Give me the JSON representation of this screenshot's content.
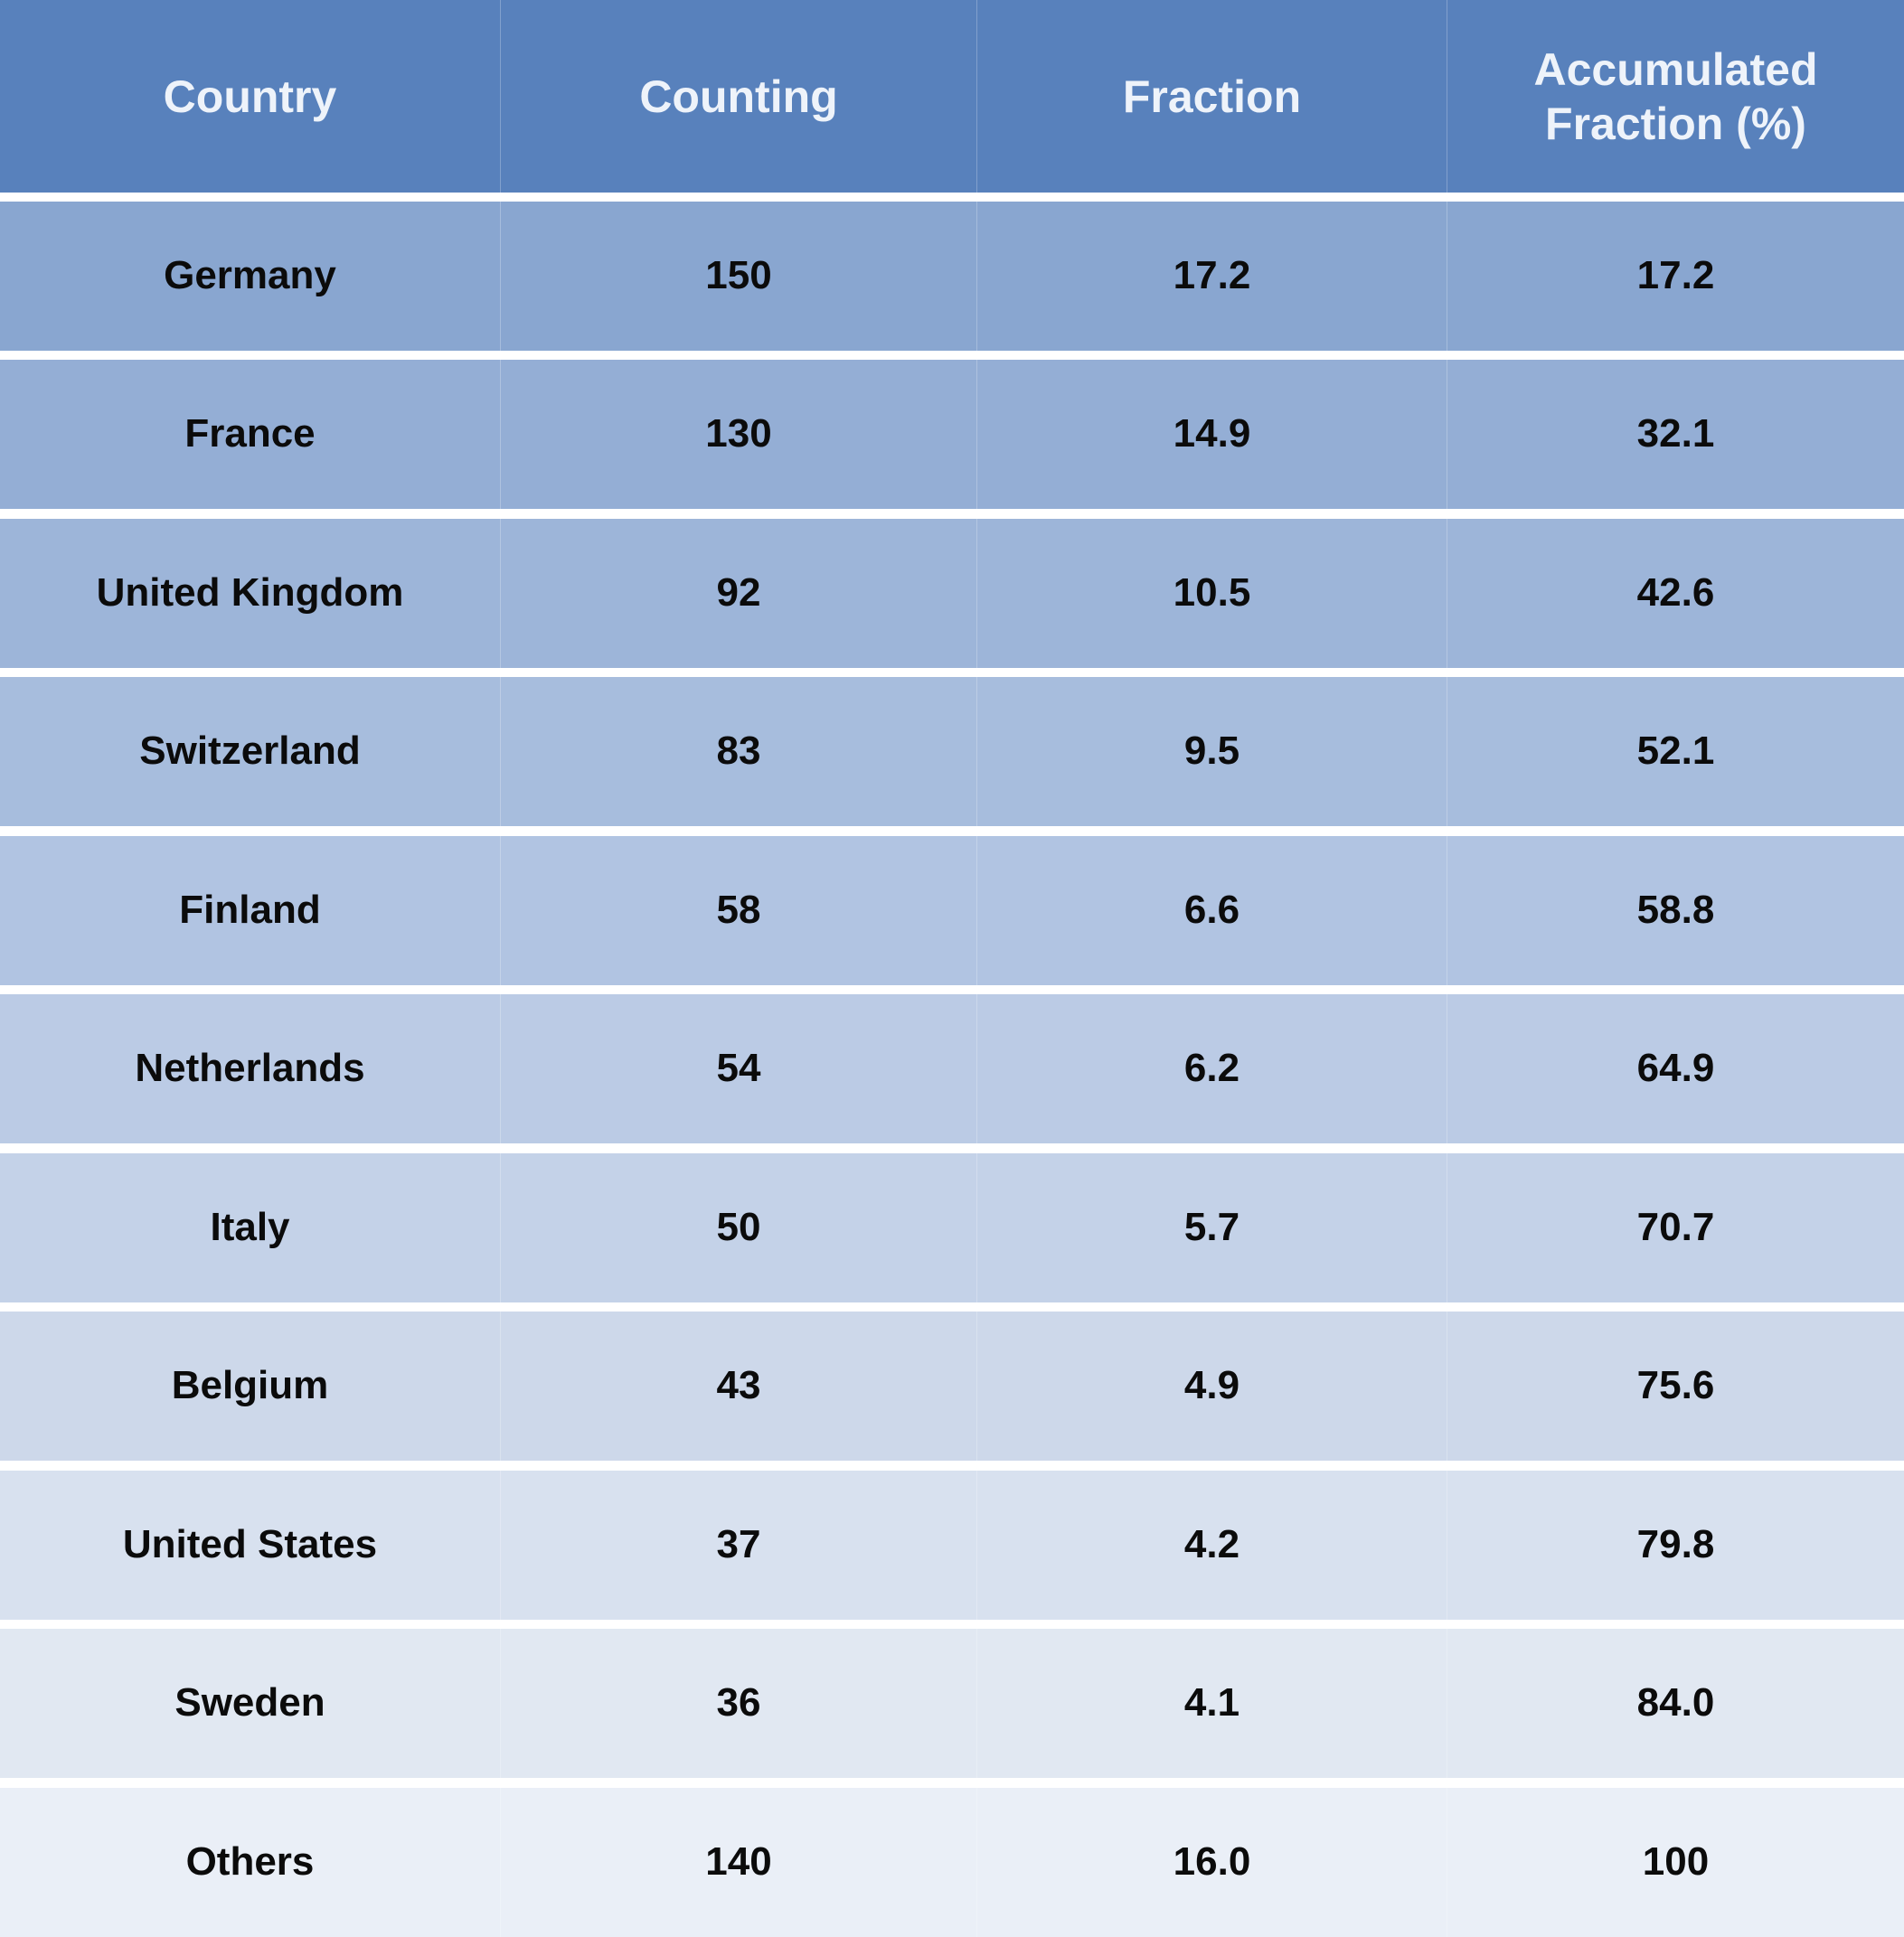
{
  "chart_data": {
    "type": "table",
    "columns": [
      "Country",
      "Counting",
      "Fraction",
      "Accumulated Fraction (%)"
    ],
    "rows": [
      [
        "Germany",
        "150",
        "17.2",
        "17.2"
      ],
      [
        "France",
        "130",
        "14.9",
        "32.1"
      ],
      [
        "United Kingdom",
        "92",
        "10.5",
        "42.6"
      ],
      [
        "Switzerland",
        "83",
        "9.5",
        "52.1"
      ],
      [
        "Finland",
        "58",
        "6.6",
        "58.8"
      ],
      [
        "Netherlands",
        "54",
        "6.2",
        "64.9"
      ],
      [
        "Italy",
        "50",
        "5.7",
        "70.7"
      ],
      [
        "Belgium",
        "43",
        "4.9",
        "75.6"
      ],
      [
        "United States",
        "37",
        "4.2",
        "79.8"
      ],
      [
        "Sweden",
        "36",
        "4.1",
        "84.0"
      ],
      [
        "Others",
        "140",
        "16.0",
        "100"
      ]
    ]
  },
  "colors": {
    "header_bg": "#5881bc",
    "header_text": "#eef3fa",
    "body_text": "#0b0b0b",
    "row_backgrounds": [
      "#89a6d0",
      "#94aed5",
      "#9db5d9",
      "#a7bddd",
      "#b1c4e2",
      "#bbcbe5",
      "#c4d2e8",
      "#cdd8ea",
      "#d8e1ef",
      "#e1e8f2",
      "#eaeff7"
    ]
  }
}
